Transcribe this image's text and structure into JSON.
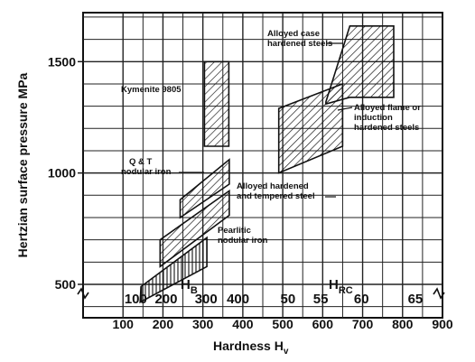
{
  "chart_data": {
    "type": "area",
    "title": "",
    "xlabel": "Hardness H",
    "xlabel_subscript": "v",
    "ylabel": "Hertzian surface pressure MPa",
    "xlim": [
      0,
      900
    ],
    "ylim": [
      350,
      1720
    ],
    "grid": true,
    "x_ticks": [
      "100",
      "200",
      "300",
      "400",
      "500",
      "600",
      "700",
      "800",
      "900"
    ],
    "y_ticks": [
      "500",
      "1000",
      "1500"
    ],
    "secondary_scales": [
      {
        "name": "H",
        "subscript": "B",
        "ticks": [
          "100",
          "200",
          "300",
          "400"
        ],
        "hv_values": [
          132,
          208,
          308,
          388
        ]
      },
      {
        "name": "H",
        "subscript": "RC",
        "ticks": [
          "50",
          "55",
          "60",
          "65"
        ],
        "hv_values": [
          513,
          595,
          697,
          832
        ]
      }
    ],
    "regions": [
      {
        "name": "Kymenite 9805",
        "hatch": "diagonal",
        "polygon": [
          [
            304,
            1500
          ],
          [
            365,
            1500
          ],
          [
            365,
            1120
          ],
          [
            304,
            1120
          ]
        ]
      },
      {
        "name": "Q & T nodular iron",
        "hatch": "diagonal",
        "polygon": [
          [
            243,
            880
          ],
          [
            366,
            1060
          ],
          [
            366,
            950
          ],
          [
            243,
            800
          ]
        ]
      },
      {
        "name": "Alloyed hardened and tempered steel",
        "hatch": "diagonal",
        "polygon": [
          [
            193,
            700
          ],
          [
            366,
            920
          ],
          [
            366,
            810
          ],
          [
            193,
            580
          ]
        ]
      },
      {
        "name": "Pearlitic nodular iron",
        "hatch": "vertical",
        "polygon": [
          [
            143,
            420
          ],
          [
            145,
            490
          ],
          [
            310,
            710
          ],
          [
            310,
            580
          ]
        ]
      },
      {
        "name": "Alloyed flame or induction hardened steels",
        "hatch": "diagonal",
        "polygon": [
          [
            490,
            1290
          ],
          [
            650,
            1400
          ],
          [
            650,
            1120
          ],
          [
            490,
            1000
          ]
        ]
      },
      {
        "name": "Alloyed case hardened steels",
        "hatch": "diagonal",
        "polygon": [
          [
            608,
            1320
          ],
          [
            668,
            1660
          ],
          [
            778,
            1660
          ],
          [
            778,
            1340
          ],
          [
            668,
            1340
          ],
          [
            608,
            1310
          ]
        ]
      }
    ],
    "annotations": [
      {
        "id": "kymenite",
        "lines": [
          "Kymenite 9805"
        ]
      },
      {
        "id": "qt",
        "lines": [
          "Q & T",
          "nodular iron"
        ]
      },
      {
        "id": "alloyed_ht",
        "lines": [
          "Alloyed hardened",
          "and tempered steel"
        ]
      },
      {
        "id": "pearlitic",
        "lines": [
          "Pearlitic",
          "nodular iron"
        ]
      },
      {
        "id": "flame",
        "lines": [
          "Alloyed flame or",
          "induction",
          "hardened steels"
        ]
      },
      {
        "id": "case",
        "lines": [
          "Alloyed case",
          "hardened steels"
        ]
      }
    ]
  }
}
